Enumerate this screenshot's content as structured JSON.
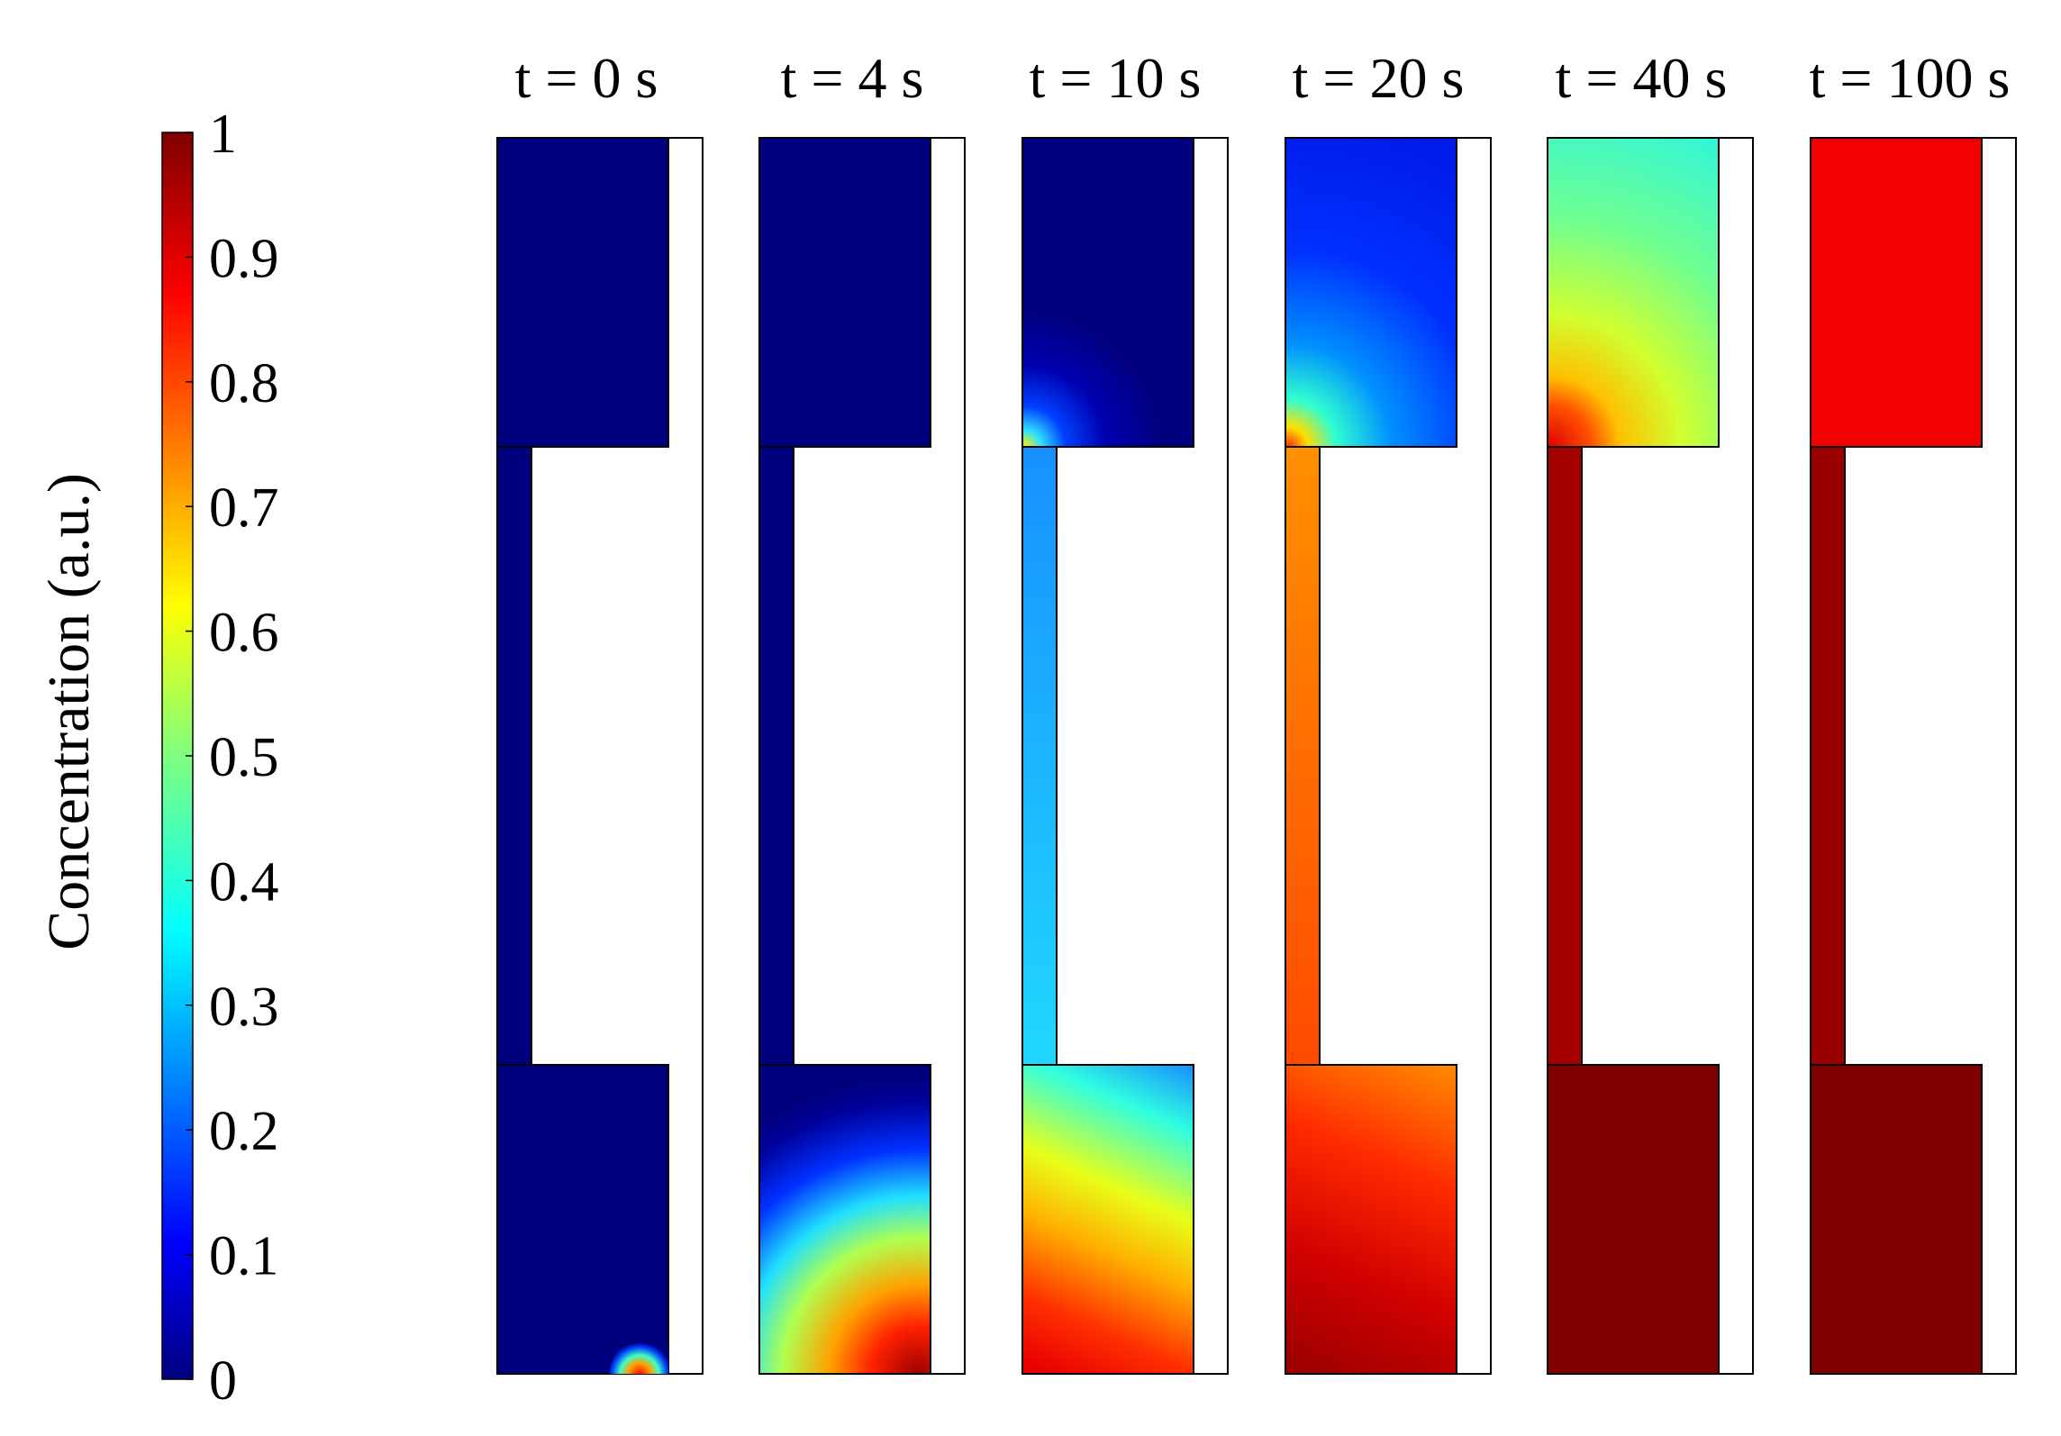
{
  "colorbar": {
    "label": "Concentration (a.u.)",
    "ticks": [
      "0",
      "0.1",
      "0.2",
      "0.3",
      "0.4",
      "0.5",
      "0.6",
      "0.7",
      "0.8",
      "0.9",
      "1"
    ],
    "colormap": "jet"
  },
  "panels": [
    {
      "label": "t = 0 s",
      "top_chamber": "#00007F",
      "channel": "#00007F",
      "bottom_chamber": "#00007F"
    },
    {
      "label": "t = 4 s",
      "top_chamber": "#00007F",
      "channel": "#00007F",
      "bottom_chamber": "gradient"
    },
    {
      "label": "t = 10 s",
      "top_chamber": "#00007F",
      "channel": "#19B4FF",
      "bottom_chamber": "gradient"
    },
    {
      "label": "t = 20 s",
      "top_chamber": "#0018FF",
      "channel": "#FF6A00",
      "bottom_chamber": "gradient"
    },
    {
      "label": "t = 40 s",
      "top_chamber": "gradient",
      "channel": "#A50000",
      "bottom_chamber": "#820000"
    },
    {
      "label": "t = 100 s",
      "top_chamber": "#F50000",
      "channel": "#9A0000",
      "bottom_chamber": "#800000"
    }
  ]
}
